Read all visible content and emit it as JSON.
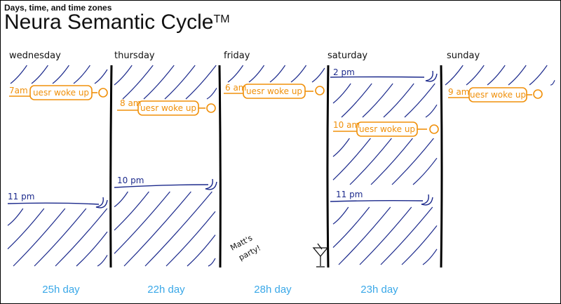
{
  "header": {
    "subtitle": "Days, time, and time zones",
    "title": "Neura Semantic Cycle",
    "trademark": "TM"
  },
  "wake_label": "uesr woke up",
  "party_label": [
    "Matt's",
    "party!"
  ],
  "colors": {
    "night": "#1c2a8c",
    "wake": "#f0900a",
    "divider": "#000000",
    "day_length": "#3aa8e8"
  },
  "days": [
    {
      "name": "wednesday",
      "wake_time": "7am",
      "sleep_time": "11 pm",
      "prior_night_end": null
    },
    {
      "name": "thursday",
      "wake_time": "8 am",
      "sleep_time": "10 pm",
      "prior_night_end": null
    },
    {
      "name": "friday",
      "wake_time": "6 am",
      "sleep_time": null,
      "prior_night_end": null
    },
    {
      "name": "saturday",
      "wake_time": "10 am",
      "sleep_time": "11 pm",
      "prior_night_end": "2 pm"
    },
    {
      "name": "sunday",
      "wake_time": "9 am",
      "sleep_time": null,
      "prior_night_end": null
    }
  ],
  "day_lengths": [
    "25h day",
    "22h day",
    "28h day",
    "23h day"
  ]
}
